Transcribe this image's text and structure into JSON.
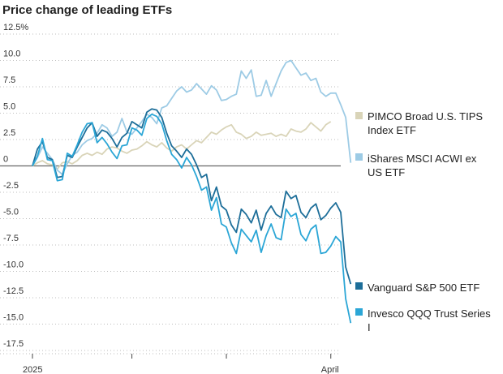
{
  "chart_data": {
    "type": "line",
    "title": "Price change of leading ETFs",
    "xlabel": "",
    "ylabel": "",
    "y_ticks": [
      {
        "value": 12.5,
        "label": "12.5%"
      },
      {
        "value": 10,
        "label": "10.0"
      },
      {
        "value": 7.5,
        "label": "7.5"
      },
      {
        "value": 5,
        "label": "5.0"
      },
      {
        "value": 2.5,
        "label": "2.5"
      },
      {
        "value": 0,
        "label": "0"
      },
      {
        "value": -2.5,
        "label": "-2.5"
      },
      {
        "value": -5,
        "label": "-5.0"
      },
      {
        "value": -7.5,
        "label": "-7.5"
      },
      {
        "value": -10,
        "label": "-10.0"
      },
      {
        "value": -12.5,
        "label": "-12.5"
      },
      {
        "value": -15,
        "label": "-15.0"
      },
      {
        "value": -17.5,
        "label": "-17.5"
      }
    ],
    "x_ticks": [
      {
        "x": 0,
        "label": "2025"
      },
      {
        "x": 20,
        "label": ""
      },
      {
        "x": 39,
        "label": ""
      },
      {
        "x": 60,
        "label": "April"
      }
    ],
    "ylim": [
      -17.5,
      12.5
    ],
    "xlim": [
      -1,
      63
    ],
    "grid": "horizontal dotted",
    "legend_position": "right",
    "series": [
      {
        "name": "PIMCO Broad U.S. TIPS Index ETF",
        "color": "#d9d4b8",
        "values": [
          0,
          0.3,
          0.5,
          0.2,
          0.1,
          -0.3,
          0.3,
          0.4,
          0.2,
          0.5,
          1.0,
          1.2,
          1.0,
          1.3,
          1.1,
          1.6,
          1.8,
          1.7,
          1.4,
          1.2,
          1.5,
          1.6,
          1.9,
          2.3,
          2.0,
          1.8,
          2.2,
          1.7,
          1.4,
          1.8,
          2.0,
          1.6,
          2.0,
          2.4,
          2.2,
          2.7,
          3.2,
          3.0,
          3.4,
          3.7,
          3.9,
          3.2,
          3.0,
          2.6,
          2.8,
          3.2,
          2.9,
          3.0,
          3.1,
          2.8,
          3.0,
          2.8,
          3.5,
          3.3,
          3.2,
          3.5,
          4.1,
          3.7,
          3.3,
          3.9,
          4.2
        ]
      },
      {
        "name": "iShares MSCI ACWI ex US ETF",
        "color": "#9dcbe5",
        "values": [
          0,
          0.8,
          1.8,
          1.2,
          0.6,
          -0.4,
          -0.8,
          0.2,
          1.0,
          1.3,
          2.0,
          2.4,
          2.6,
          3.1,
          3.9,
          3.6,
          2.8,
          3.2,
          4.5,
          3.2,
          3.0,
          3.6,
          4.2,
          4.9,
          4.6,
          4.0,
          5.5,
          5.7,
          6.4,
          7.1,
          7.5,
          7.0,
          7.2,
          7.8,
          7.3,
          6.8,
          7.6,
          7.2,
          6.2,
          6.3,
          6.6,
          6.8,
          9.0,
          8.3,
          9.1,
          6.6,
          6.7,
          8.1,
          6.6,
          7.8,
          9.0,
          9.8,
          10.0,
          9.3,
          8.6,
          8.8,
          8.1,
          8.3,
          7.0,
          6.6,
          6.9,
          6.9,
          5.8,
          4.6,
          0.3
        ]
      },
      {
        "name": "Vanguard S&P 500 ETF",
        "color": "#1d6e99",
        "values": [
          0,
          1.6,
          2.3,
          0.8,
          0.6,
          -1.1,
          -1.0,
          1.0,
          0.8,
          1.8,
          2.7,
          3.6,
          4.1,
          2.8,
          3.4,
          3.2,
          2.6,
          1.8,
          2.7,
          3.1,
          4.2,
          3.9,
          3.6,
          5.1,
          5.4,
          5.3,
          4.6,
          3.1,
          1.9,
          1.4,
          0.8,
          1.6,
          1.1,
          0.1,
          -1.1,
          -0.8,
          -3.3,
          -2.0,
          -3.8,
          -4.2,
          -5.6,
          -6.3,
          -4.1,
          -4.6,
          -5.4,
          -4.2,
          -6.1,
          -4.5,
          -3.8,
          -4.6,
          -4.9,
          -2.4,
          -3.1,
          -2.8,
          -4.4,
          -4.9,
          -4.0,
          -3.6,
          -5.1,
          -4.7,
          -4.0,
          -3.5,
          -4.4,
          -9.6,
          -11.2
        ]
      },
      {
        "name": "Invesco QQQ Trust Series I",
        "color": "#2ba6d6",
        "values": [
          0,
          0.9,
          2.6,
          0.6,
          0.5,
          -1.4,
          -1.3,
          1.2,
          0.9,
          2.0,
          3.2,
          4.0,
          4.1,
          2.2,
          2.7,
          2.1,
          1.3,
          0.7,
          1.9,
          2.0,
          3.6,
          3.4,
          2.9,
          4.5,
          4.9,
          4.7,
          4.0,
          2.4,
          1.1,
          0.6,
          -0.2,
          0.8,
          0.1,
          -1.0,
          -2.3,
          -2.0,
          -4.2,
          -3.0,
          -5.5,
          -5.8,
          -7.3,
          -8.3,
          -6.0,
          -6.6,
          -7.2,
          -6.1,
          -8.2,
          -6.6,
          -5.5,
          -6.8,
          -7.0,
          -4.1,
          -4.8,
          -4.5,
          -6.5,
          -7.1,
          -6.0,
          -5.6,
          -8.3,
          -8.2,
          -7.6,
          -6.7,
          -7.2,
          -12.6,
          -14.9
        ]
      }
    ]
  }
}
